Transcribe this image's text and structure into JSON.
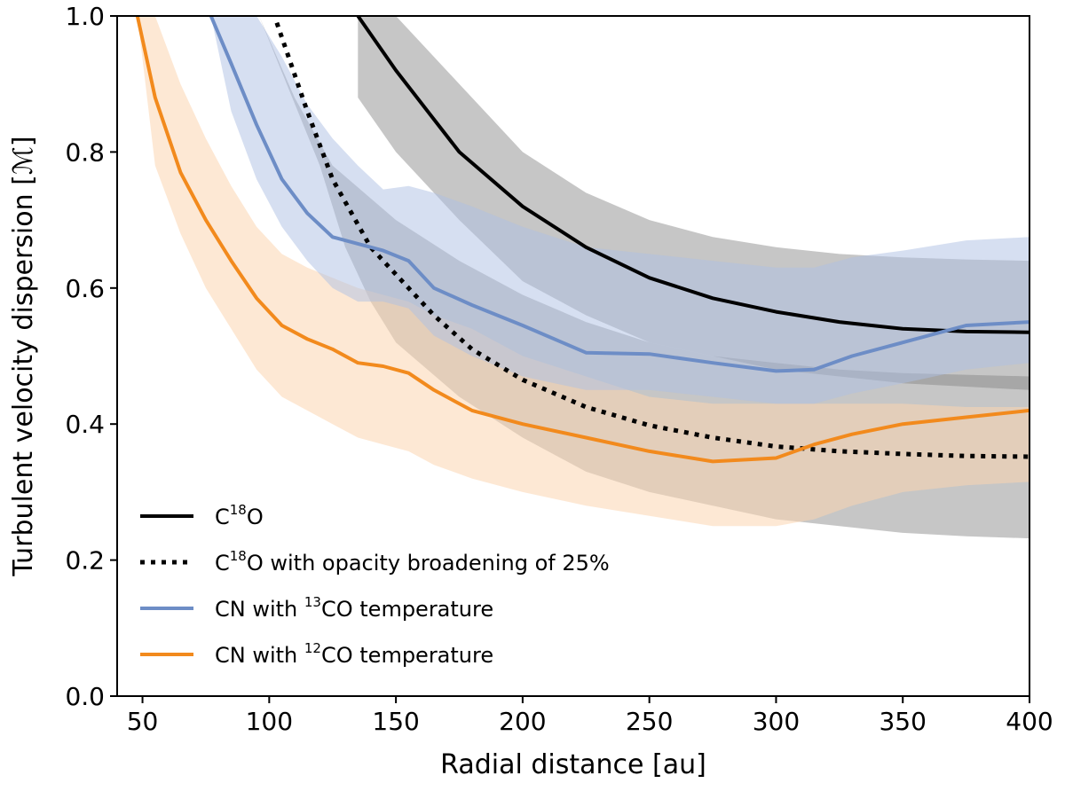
{
  "chart_data": {
    "type": "line",
    "title": "",
    "xlabel": "Radial distance [au]",
    "ylabel": "Turbulent velocity dispersion [ℳ]",
    "xlim": [
      40,
      400
    ],
    "ylim": [
      0.0,
      1.0
    ],
    "x_ticks": [
      50,
      100,
      150,
      200,
      250,
      300,
      350,
      400
    ],
    "x_tick_labels": [
      "50",
      "100",
      "150",
      "200",
      "250",
      "300",
      "350",
      "400"
    ],
    "y_ticks": [
      0.0,
      0.2,
      0.4,
      0.6,
      0.8,
      1.0
    ],
    "y_tick_labels": [
      "0.0",
      "0.2",
      "0.4",
      "0.6",
      "0.8",
      "1.0"
    ],
    "grid": false,
    "legend_position": "bottom-left",
    "series": [
      {
        "name": "C18O",
        "legend": {
          "pre": "C",
          "sup": "18",
          "post": "O"
        },
        "color": "#000000",
        "style": "solid",
        "band_color": "#808080",
        "x": [
          135,
          150,
          175,
          200,
          225,
          250,
          275,
          300,
          325,
          350,
          375,
          400
        ],
        "y": [
          1.0,
          0.92,
          0.8,
          0.72,
          0.66,
          0.615,
          0.585,
          0.565,
          0.55,
          0.54,
          0.536,
          0.535
        ],
        "band_upper": [
          1.0,
          1.0,
          0.9,
          0.8,
          0.74,
          0.7,
          0.675,
          0.66,
          0.65,
          0.645,
          0.642,
          0.64
        ],
        "band_lower": [
          0.88,
          0.8,
          0.7,
          0.61,
          0.56,
          0.52,
          0.5,
          0.48,
          0.47,
          0.46,
          0.455,
          0.45
        ]
      },
      {
        "name": "C18O with opacity broadening of 25%",
        "legend": {
          "pre": "C",
          "sup": "18",
          "post": "O with opacity broadening of 25%"
        },
        "color": "#000000",
        "style": "dotted",
        "band_color": "#808080",
        "x": [
          103,
          115,
          125,
          140,
          150,
          165,
          180,
          200,
          225,
          250,
          275,
          300,
          325,
          350,
          375,
          400
        ],
        "y": [
          0.99,
          0.86,
          0.76,
          0.66,
          0.62,
          0.56,
          0.51,
          0.465,
          0.425,
          0.398,
          0.38,
          0.367,
          0.36,
          0.356,
          0.353,
          0.352
        ],
        "band_upper_x": [
          96,
          110,
          125,
          150,
          175,
          200,
          225,
          250,
          275,
          300,
          325,
          350,
          400
        ],
        "band_upper": [
          1.0,
          0.88,
          0.78,
          0.7,
          0.64,
          0.59,
          0.55,
          0.52,
          0.5,
          0.49,
          0.48,
          0.475,
          0.47
        ],
        "band_lower_x": [
          120,
          130,
          140,
          150,
          175,
          200,
          225,
          250,
          275,
          300,
          325,
          350,
          375,
          400
        ],
        "band_lower": [
          0.78,
          0.66,
          0.58,
          0.52,
          0.44,
          0.38,
          0.33,
          0.3,
          0.28,
          0.26,
          0.25,
          0.24,
          0.235,
          0.232
        ]
      },
      {
        "name": "CN with 13CO temperature",
        "legend": {
          "pre": "CN with ",
          "sup": "13",
          "post": "CO temperature"
        },
        "color": "#6d8dc6",
        "style": "solid",
        "band_color": "#aebfe3",
        "x": [
          77,
          85,
          95,
          105,
          115,
          125,
          135,
          145,
          155,
          165,
          180,
          200,
          225,
          250,
          275,
          300,
          315,
          330,
          350,
          375,
          400
        ],
        "y": [
          1.0,
          0.93,
          0.84,
          0.76,
          0.71,
          0.675,
          0.665,
          0.655,
          0.64,
          0.6,
          0.575,
          0.545,
          0.505,
          0.503,
          0.49,
          0.478,
          0.48,
          0.5,
          0.52,
          0.545,
          0.55
        ],
        "band_upper": [
          1.0,
          1.0,
          1.0,
          0.94,
          0.87,
          0.82,
          0.78,
          0.745,
          0.75,
          0.74,
          0.72,
          0.69,
          0.66,
          0.65,
          0.64,
          0.63,
          0.63,
          0.645,
          0.655,
          0.67,
          0.675
        ],
        "band_lower": [
          1.0,
          0.86,
          0.76,
          0.69,
          0.64,
          0.6,
          0.58,
          0.58,
          0.57,
          0.53,
          0.5,
          0.47,
          0.45,
          0.45,
          0.44,
          0.43,
          0.43,
          0.445,
          0.46,
          0.48,
          0.49
        ]
      },
      {
        "name": "CN with 12CO temperature",
        "legend": {
          "pre": "CN with ",
          "sup": "12",
          "post": "CO temperature"
        },
        "color": "#f28a1d",
        "style": "solid",
        "band_color": "#fbd5b0",
        "x": [
          48,
          55,
          65,
          75,
          85,
          95,
          105,
          115,
          125,
          135,
          145,
          155,
          165,
          180,
          200,
          225,
          250,
          275,
          300,
          315,
          330,
          350,
          375,
          400
        ],
        "y": [
          1.0,
          0.88,
          0.77,
          0.7,
          0.64,
          0.585,
          0.545,
          0.525,
          0.51,
          0.49,
          0.485,
          0.475,
          0.45,
          0.42,
          0.4,
          0.38,
          0.36,
          0.345,
          0.35,
          0.37,
          0.385,
          0.4,
          0.41,
          0.42
        ],
        "band_upper": [
          1.0,
          1.0,
          0.9,
          0.82,
          0.75,
          0.69,
          0.65,
          0.63,
          0.615,
          0.6,
          0.59,
          0.58,
          0.56,
          0.54,
          0.5,
          0.47,
          0.44,
          0.43,
          0.43,
          0.43,
          0.43,
          0.43,
          0.425,
          0.425
        ],
        "band_lower": [
          1.0,
          0.78,
          0.68,
          0.6,
          0.54,
          0.48,
          0.44,
          0.42,
          0.4,
          0.38,
          0.37,
          0.36,
          0.34,
          0.32,
          0.3,
          0.28,
          0.265,
          0.25,
          0.25,
          0.26,
          0.28,
          0.3,
          0.31,
          0.315
        ]
      }
    ]
  }
}
